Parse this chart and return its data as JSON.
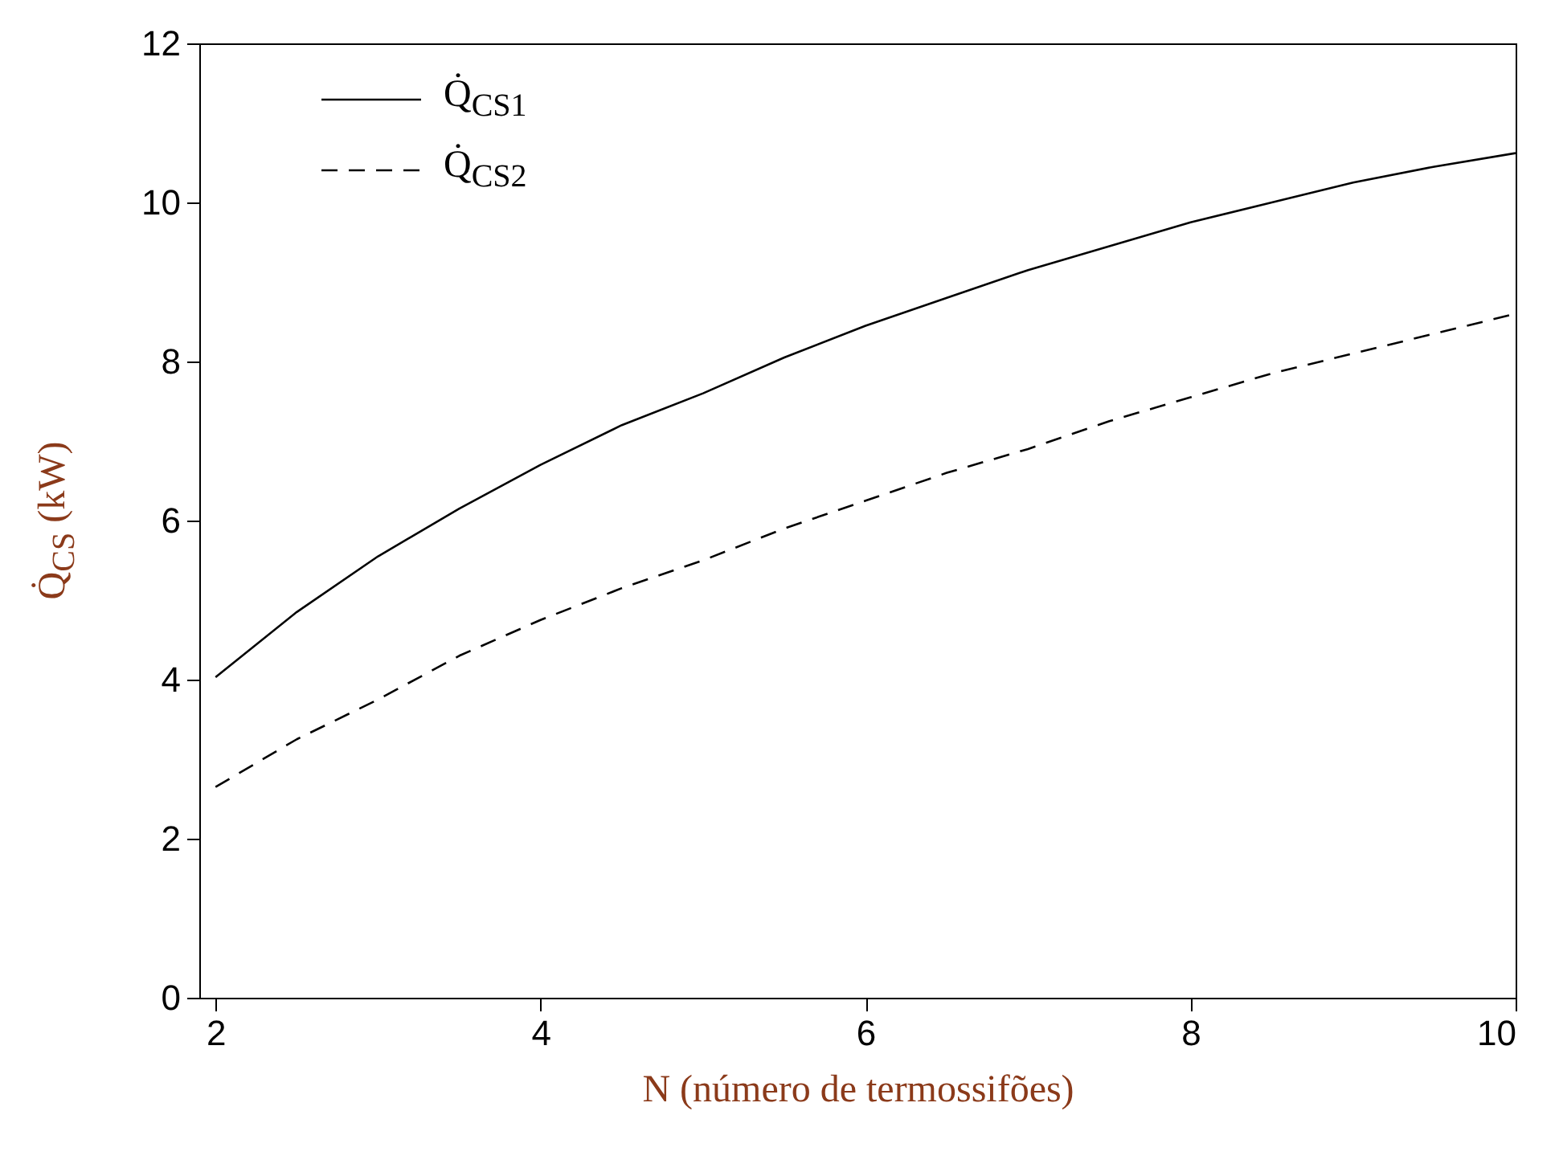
{
  "chart_data": {
    "type": "line",
    "xlabel": "N (número de termossifões)",
    "ylabel": "Q̇$_{CS}$ (kW)",
    "x": [
      2,
      2.5,
      3,
      3.5,
      4,
      4.5,
      5,
      5.5,
      6,
      6.5,
      7,
      7.5,
      8,
      8.5,
      9,
      9.5,
      10
    ],
    "series": [
      {
        "name": "Q̇$_{CS1}$",
        "color": "#000000",
        "line_style": "solid",
        "values": [
          4.03,
          4.85,
          5.55,
          6.15,
          6.7,
          7.2,
          7.6,
          8.05,
          8.45,
          8.8,
          9.15,
          9.45,
          9.75,
          10.0,
          10.25,
          10.45,
          10.62
        ]
      },
      {
        "name": "Q̇$_{CS2}$",
        "color": "#000000",
        "line_style": "dashed",
        "values": [
          2.65,
          3.25,
          3.75,
          4.3,
          4.75,
          5.15,
          5.5,
          5.9,
          6.25,
          6.6,
          6.9,
          7.25,
          7.55,
          7.85,
          8.1,
          8.35,
          8.6
        ]
      }
    ],
    "xlim": [
      1.9,
      10
    ],
    "ylim": [
      0,
      12
    ],
    "xticks": [
      2,
      4,
      6,
      8,
      10
    ],
    "yticks": [
      0,
      2,
      4,
      6,
      8,
      10,
      12
    ],
    "grid": false,
    "legend": "top left",
    "marker": "none"
  }
}
